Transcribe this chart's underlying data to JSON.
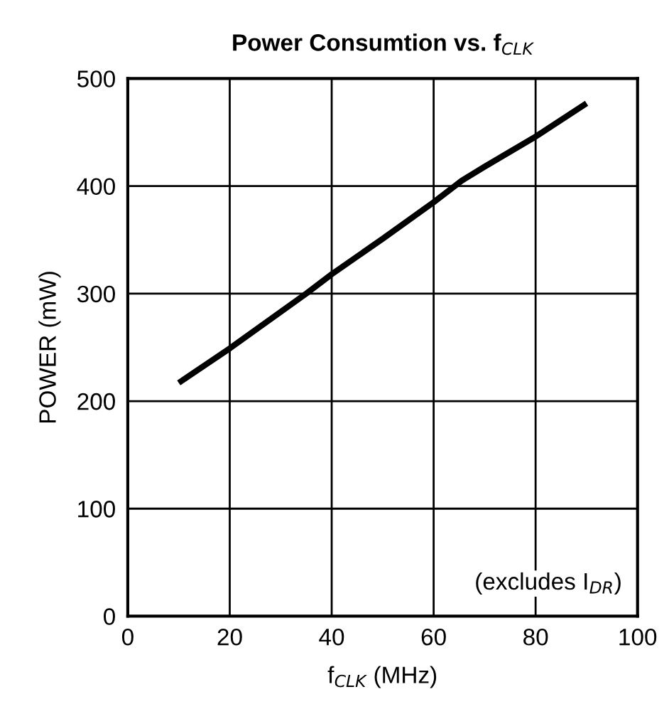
{
  "chart_data": {
    "type": "line",
    "title": "Power Consumtion vs. f$_{CLK}$",
    "xlabel": "f$_{CLK}$ (MHz)",
    "ylabel": "POWER (mW)",
    "annotations": [
      "(excludes I$_{DR}$)"
    ],
    "series": [
      {
        "color": "#000000",
        "x": [
          10,
          20,
          35,
          40,
          50,
          60,
          65.5,
          70,
          80,
          90
        ],
        "values": [
          217,
          249,
          300,
          318,
          351,
          385,
          405,
          418,
          446,
          477
        ]
      }
    ],
    "xlim": [
      0,
      100
    ],
    "xticks": [
      0,
      20,
      40,
      60,
      80,
      100
    ],
    "ylim": [
      0,
      500
    ],
    "yticks": [
      0,
      100,
      200,
      300,
      400,
      500
    ],
    "grid": true,
    "line_style": "solid",
    "marker": "none"
  }
}
